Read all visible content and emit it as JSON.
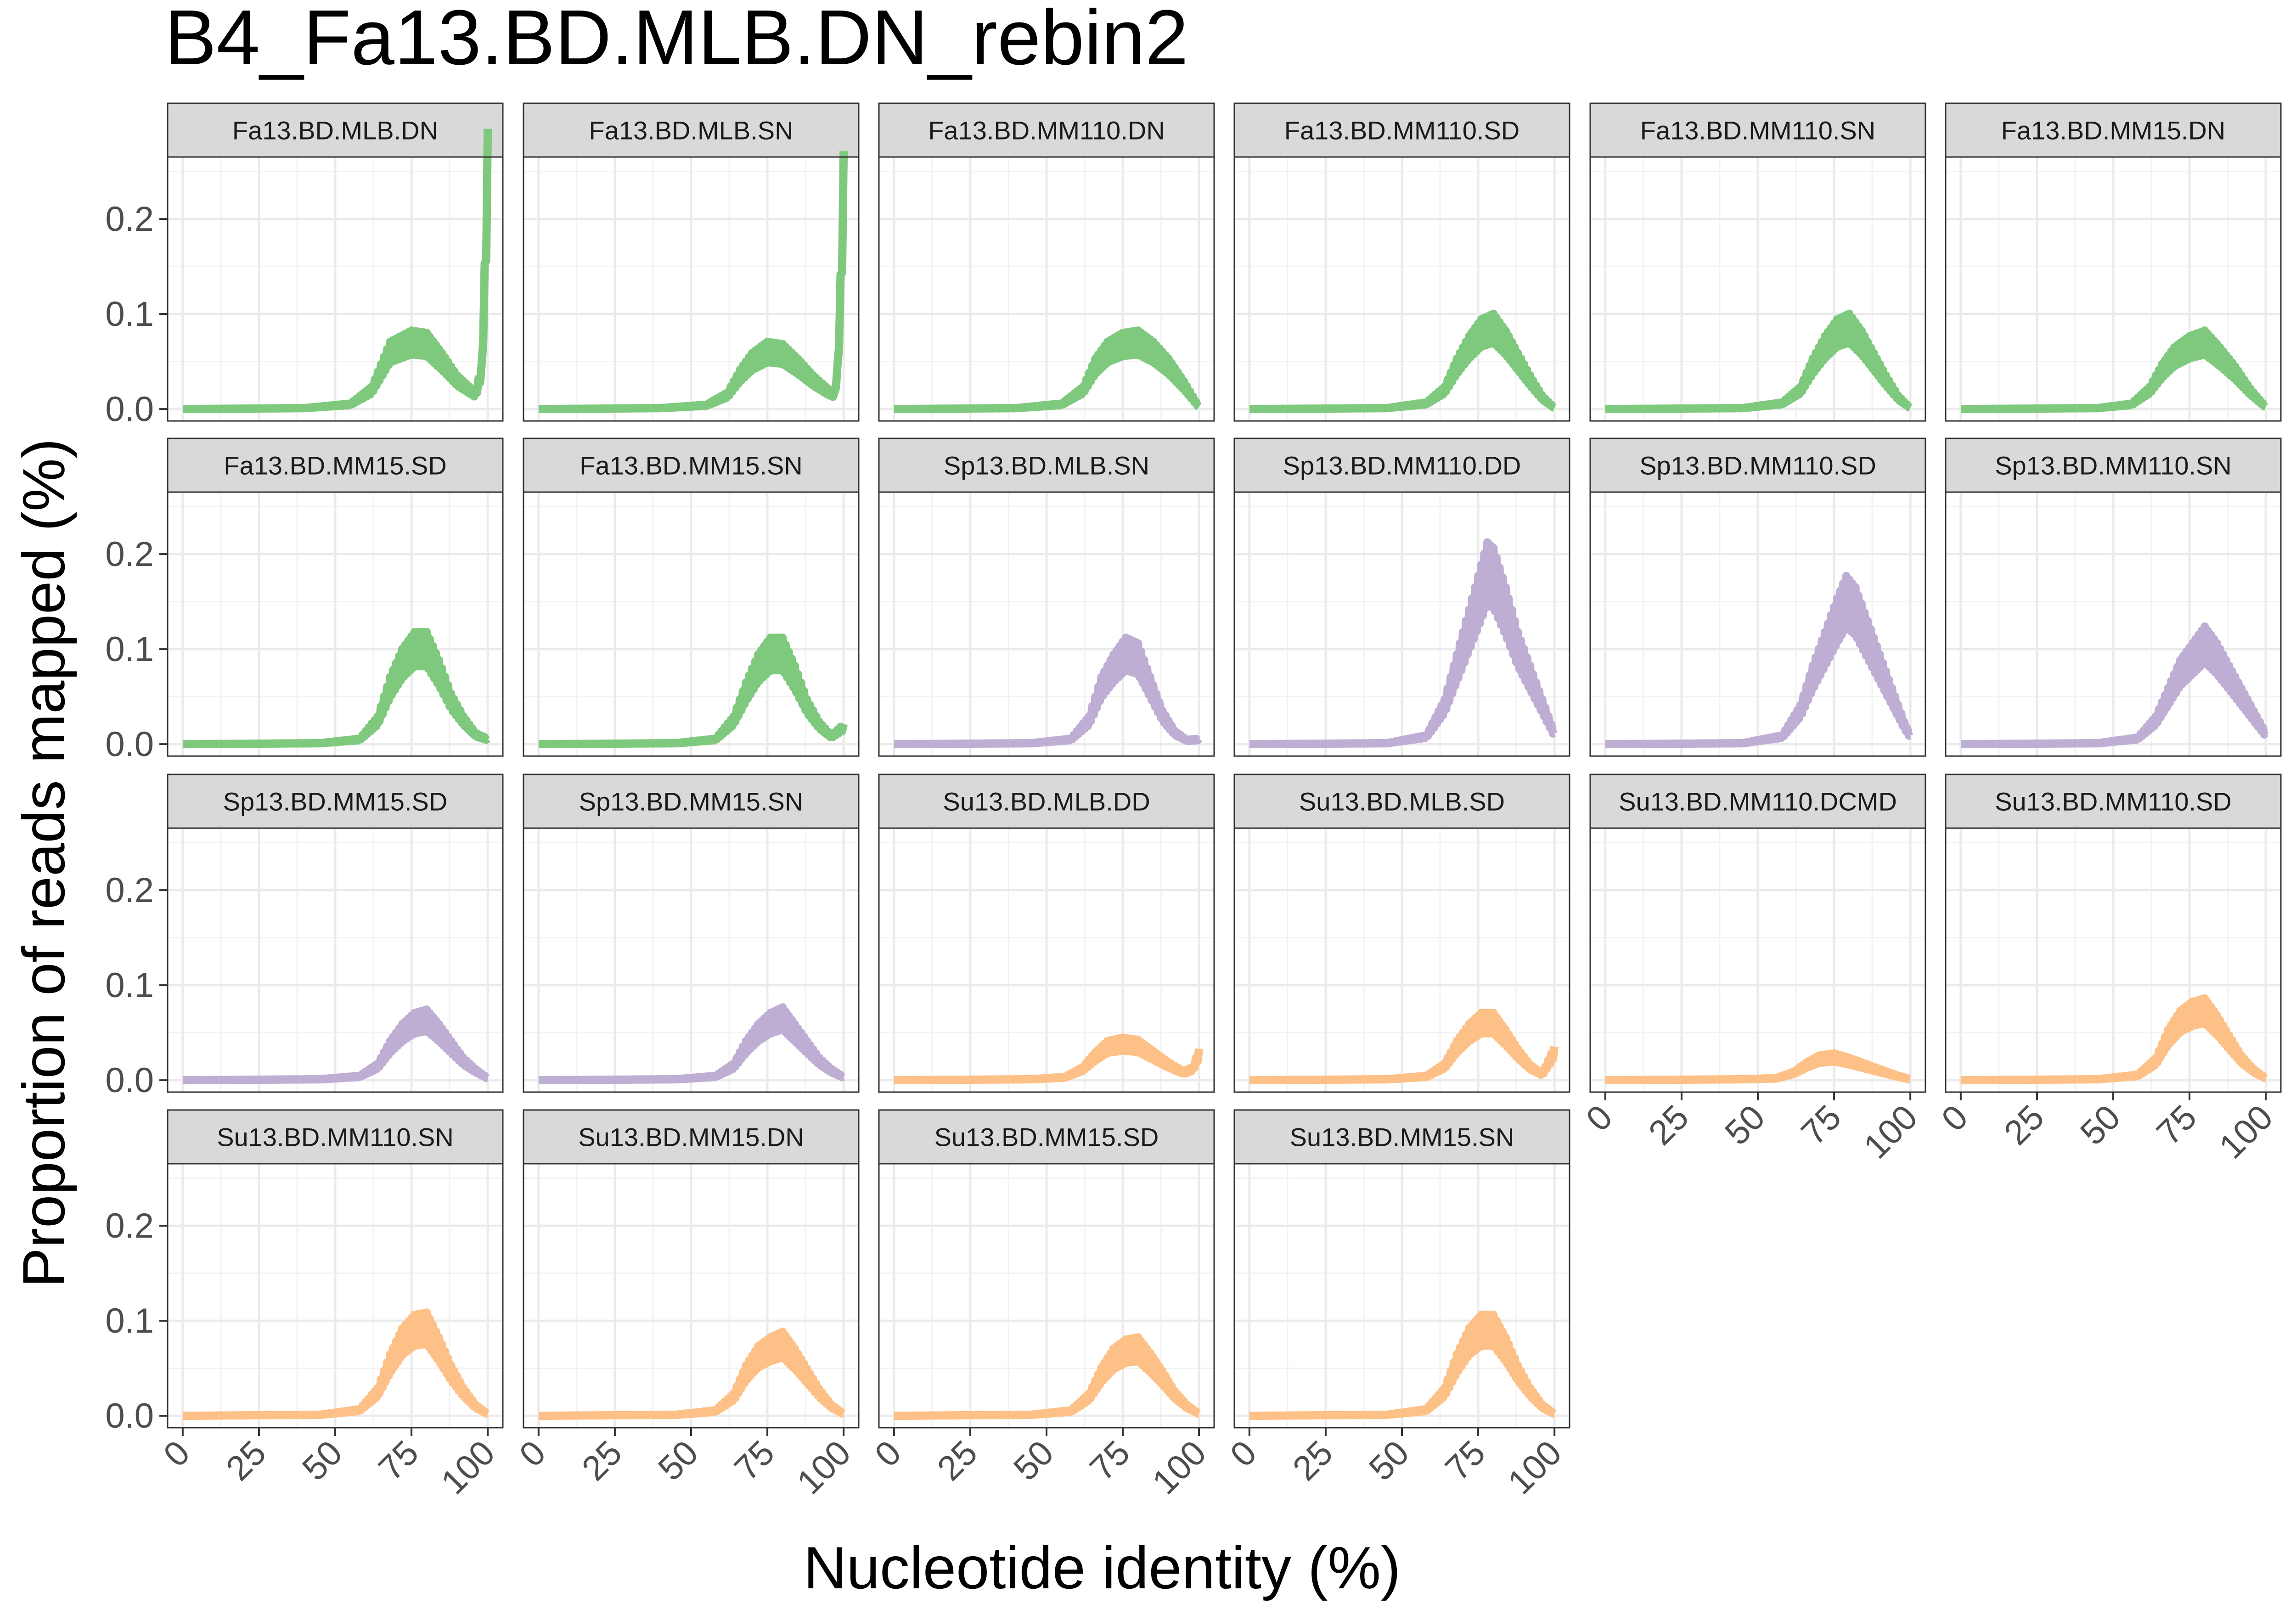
{
  "chart_data": {
    "type": "line",
    "title": "B4_Fa13.BD.MLB.DN_rebin2",
    "xlabel": "Nucleotide identity (%)",
    "ylabel": "Proportion of reads mapped (%)",
    "xlim": [
      0,
      100
    ],
    "ylim": [
      0,
      0.25
    ],
    "x_ticks": [
      0,
      25,
      50,
      75,
      100
    ],
    "y_ticks": [
      0.0,
      0.1,
      0.2
    ],
    "grid": true,
    "legend": "none",
    "group_colors": {
      "Fa": "#7fc97f",
      "Sp": "#beaed4",
      "Su": "#fdc086"
    },
    "panels": [
      {
        "name": "Fa13.BD.MLB.DN",
        "group": "Fa",
        "points": [
          [
            0,
            0
          ],
          [
            40,
            0.001
          ],
          [
            55,
            0.005
          ],
          [
            62,
            0.02
          ],
          [
            65,
            0.04
          ],
          [
            68,
            0.06
          ],
          [
            75,
            0.07
          ],
          [
            80,
            0.068
          ],
          [
            85,
            0.05
          ],
          [
            90,
            0.03
          ],
          [
            94,
            0.02
          ],
          [
            96,
            0.015
          ],
          [
            98,
            0.04
          ],
          [
            99,
            0.13
          ],
          [
            100,
            0.25
          ]
        ]
      },
      {
        "name": "Fa13.BD.MLB.SN",
        "group": "Fa",
        "points": [
          [
            0,
            0
          ],
          [
            40,
            0.001
          ],
          [
            55,
            0.004
          ],
          [
            62,
            0.015
          ],
          [
            66,
            0.035
          ],
          [
            70,
            0.05
          ],
          [
            75,
            0.06
          ],
          [
            80,
            0.058
          ],
          [
            85,
            0.045
          ],
          [
            90,
            0.03
          ],
          [
            95,
            0.018
          ],
          [
            97,
            0.015
          ],
          [
            98,
            0.04
          ],
          [
            99,
            0.12
          ],
          [
            100,
            0.23
          ]
        ]
      },
      {
        "name": "Fa13.BD.MM110.DN",
        "group": "Fa",
        "points": [
          [
            0,
            0
          ],
          [
            40,
            0.001
          ],
          [
            55,
            0.005
          ],
          [
            62,
            0.02
          ],
          [
            66,
            0.045
          ],
          [
            70,
            0.06
          ],
          [
            75,
            0.068
          ],
          [
            80,
            0.07
          ],
          [
            85,
            0.06
          ],
          [
            90,
            0.045
          ],
          [
            95,
            0.025
          ],
          [
            100,
            0.002
          ]
        ]
      },
      {
        "name": "Fa13.BD.MM110.SD",
        "group": "Fa",
        "points": [
          [
            0,
            0
          ],
          [
            45,
            0.001
          ],
          [
            58,
            0.006
          ],
          [
            64,
            0.02
          ],
          [
            68,
            0.045
          ],
          [
            72,
            0.065
          ],
          [
            76,
            0.08
          ],
          [
            80,
            0.085
          ],
          [
            84,
            0.07
          ],
          [
            88,
            0.05
          ],
          [
            92,
            0.03
          ],
          [
            96,
            0.012
          ],
          [
            100,
            0.001
          ]
        ]
      },
      {
        "name": "Fa13.BD.MM110.SN",
        "group": "Fa",
        "points": [
          [
            0,
            0
          ],
          [
            45,
            0.001
          ],
          [
            58,
            0.006
          ],
          [
            64,
            0.02
          ],
          [
            68,
            0.045
          ],
          [
            72,
            0.065
          ],
          [
            76,
            0.08
          ],
          [
            80,
            0.085
          ],
          [
            84,
            0.07
          ],
          [
            88,
            0.05
          ],
          [
            92,
            0.03
          ],
          [
            96,
            0.012
          ],
          [
            100,
            0.001
          ]
        ]
      },
      {
        "name": "Fa13.BD.MM15.DN",
        "group": "Fa",
        "points": [
          [
            0,
            0
          ],
          [
            45,
            0.001
          ],
          [
            56,
            0.005
          ],
          [
            62,
            0.02
          ],
          [
            66,
            0.04
          ],
          [
            70,
            0.055
          ],
          [
            75,
            0.065
          ],
          [
            80,
            0.07
          ],
          [
            85,
            0.055
          ],
          [
            90,
            0.038
          ],
          [
            95,
            0.018
          ],
          [
            100,
            0.002
          ]
        ]
      },
      {
        "name": "Fa13.BD.MM15.SD",
        "group": "Fa",
        "points": [
          [
            0,
            0
          ],
          [
            45,
            0.001
          ],
          [
            58,
            0.005
          ],
          [
            64,
            0.025
          ],
          [
            68,
            0.06
          ],
          [
            72,
            0.085
          ],
          [
            76,
            0.1
          ],
          [
            80,
            0.1
          ],
          [
            84,
            0.075
          ],
          [
            88,
            0.045
          ],
          [
            92,
            0.025
          ],
          [
            96,
            0.01
          ],
          [
            100,
            0.005
          ]
        ]
      },
      {
        "name": "Fa13.BD.MM15.SN",
        "group": "Fa",
        "points": [
          [
            0,
            0
          ],
          [
            45,
            0.001
          ],
          [
            58,
            0.005
          ],
          [
            64,
            0.025
          ],
          [
            68,
            0.055
          ],
          [
            72,
            0.08
          ],
          [
            76,
            0.095
          ],
          [
            80,
            0.095
          ],
          [
            84,
            0.07
          ],
          [
            88,
            0.04
          ],
          [
            92,
            0.02
          ],
          [
            96,
            0.008
          ],
          [
            100,
            0.018
          ]
        ]
      },
      {
        "name": "Sp13.BD.MLB.SN",
        "group": "Sp",
        "points": [
          [
            0,
            0
          ],
          [
            45,
            0.001
          ],
          [
            58,
            0.005
          ],
          [
            64,
            0.025
          ],
          [
            68,
            0.06
          ],
          [
            72,
            0.08
          ],
          [
            76,
            0.095
          ],
          [
            80,
            0.09
          ],
          [
            84,
            0.06
          ],
          [
            88,
            0.03
          ],
          [
            92,
            0.012
          ],
          [
            96,
            0.004
          ],
          [
            100,
            0.005
          ]
        ]
      },
      {
        "name": "Sp13.BD.MM110.DD",
        "group": "Sp",
        "points": [
          [
            0,
            0
          ],
          [
            45,
            0.001
          ],
          [
            58,
            0.008
          ],
          [
            64,
            0.04
          ],
          [
            68,
            0.08
          ],
          [
            72,
            0.12
          ],
          [
            76,
            0.16
          ],
          [
            78,
            0.18
          ],
          [
            80,
            0.175
          ],
          [
            84,
            0.14
          ],
          [
            88,
            0.1
          ],
          [
            92,
            0.07
          ],
          [
            96,
            0.04
          ],
          [
            100,
            0.01
          ]
        ]
      },
      {
        "name": "Sp13.BD.MM110.SD",
        "group": "Sp",
        "points": [
          [
            0,
            0
          ],
          [
            45,
            0.001
          ],
          [
            58,
            0.008
          ],
          [
            64,
            0.035
          ],
          [
            68,
            0.07
          ],
          [
            72,
            0.1
          ],
          [
            76,
            0.13
          ],
          [
            79,
            0.15
          ],
          [
            82,
            0.14
          ],
          [
            86,
            0.11
          ],
          [
            90,
            0.08
          ],
          [
            94,
            0.05
          ],
          [
            98,
            0.02
          ],
          [
            100,
            0.008
          ]
        ]
      },
      {
        "name": "Sp13.BD.MM110.SN",
        "group": "Sp",
        "points": [
          [
            0,
            0
          ],
          [
            45,
            0.001
          ],
          [
            58,
            0.006
          ],
          [
            64,
            0.025
          ],
          [
            68,
            0.05
          ],
          [
            72,
            0.075
          ],
          [
            76,
            0.09
          ],
          [
            80,
            0.105
          ],
          [
            84,
            0.09
          ],
          [
            88,
            0.07
          ],
          [
            92,
            0.05
          ],
          [
            96,
            0.03
          ],
          [
            100,
            0.01
          ]
        ]
      },
      {
        "name": "Sp13.BD.MM15.SD",
        "group": "Sp",
        "points": [
          [
            0,
            0
          ],
          [
            45,
            0.001
          ],
          [
            58,
            0.004
          ],
          [
            64,
            0.015
          ],
          [
            68,
            0.035
          ],
          [
            72,
            0.05
          ],
          [
            76,
            0.06
          ],
          [
            80,
            0.063
          ],
          [
            84,
            0.05
          ],
          [
            88,
            0.035
          ],
          [
            92,
            0.02
          ],
          [
            96,
            0.01
          ],
          [
            100,
            0.002
          ]
        ]
      },
      {
        "name": "Sp13.BD.MM15.SN",
        "group": "Sp",
        "points": [
          [
            0,
            0
          ],
          [
            45,
            0.001
          ],
          [
            58,
            0.004
          ],
          [
            64,
            0.015
          ],
          [
            68,
            0.035
          ],
          [
            72,
            0.05
          ],
          [
            76,
            0.06
          ],
          [
            80,
            0.065
          ],
          [
            84,
            0.05
          ],
          [
            88,
            0.035
          ],
          [
            92,
            0.02
          ],
          [
            96,
            0.01
          ],
          [
            100,
            0.003
          ]
        ]
      },
      {
        "name": "Su13.BD.MLB.DD",
        "group": "Su",
        "points": [
          [
            0,
            0
          ],
          [
            45,
            0.001
          ],
          [
            56,
            0.003
          ],
          [
            62,
            0.012
          ],
          [
            66,
            0.025
          ],
          [
            70,
            0.035
          ],
          [
            75,
            0.038
          ],
          [
            80,
            0.036
          ],
          [
            85,
            0.026
          ],
          [
            90,
            0.016
          ],
          [
            95,
            0.008
          ],
          [
            98,
            0.012
          ],
          [
            100,
            0.028
          ]
        ]
      },
      {
        "name": "Su13.BD.MLB.SD",
        "group": "Su",
        "points": [
          [
            0,
            0
          ],
          [
            45,
            0.001
          ],
          [
            58,
            0.004
          ],
          [
            64,
            0.015
          ],
          [
            68,
            0.035
          ],
          [
            72,
            0.05
          ],
          [
            76,
            0.06
          ],
          [
            80,
            0.06
          ],
          [
            84,
            0.045
          ],
          [
            88,
            0.028
          ],
          [
            92,
            0.014
          ],
          [
            96,
            0.006
          ],
          [
            100,
            0.03
          ]
        ]
      },
      {
        "name": "Su13.BD.MM110.DCMD",
        "group": "Su",
        "points": [
          [
            0,
            0
          ],
          [
            45,
            0.001
          ],
          [
            56,
            0.002
          ],
          [
            62,
            0.008
          ],
          [
            66,
            0.016
          ],
          [
            70,
            0.022
          ],
          [
            75,
            0.024
          ],
          [
            80,
            0.02
          ],
          [
            85,
            0.015
          ],
          [
            90,
            0.01
          ],
          [
            95,
            0.005
          ],
          [
            100,
            0.001
          ]
        ]
      },
      {
        "name": "Su13.BD.MM110.SD",
        "group": "Su",
        "points": [
          [
            0,
            0
          ],
          [
            45,
            0.001
          ],
          [
            58,
            0.005
          ],
          [
            64,
            0.02
          ],
          [
            68,
            0.045
          ],
          [
            72,
            0.062
          ],
          [
            76,
            0.07
          ],
          [
            80,
            0.073
          ],
          [
            84,
            0.058
          ],
          [
            88,
            0.04
          ],
          [
            92,
            0.022
          ],
          [
            96,
            0.01
          ],
          [
            100,
            0.002
          ]
        ]
      },
      {
        "name": "Su13.BD.MM110.SN",
        "group": "Su",
        "points": [
          [
            0,
            0
          ],
          [
            45,
            0.001
          ],
          [
            58,
            0.006
          ],
          [
            64,
            0.025
          ],
          [
            68,
            0.055
          ],
          [
            72,
            0.078
          ],
          [
            76,
            0.09
          ],
          [
            80,
            0.092
          ],
          [
            84,
            0.07
          ],
          [
            88,
            0.045
          ],
          [
            92,
            0.025
          ],
          [
            96,
            0.01
          ],
          [
            100,
            0.002
          ]
        ]
      },
      {
        "name": "Su13.BD.MM15.DN",
        "group": "Su",
        "points": [
          [
            0,
            0
          ],
          [
            45,
            0.001
          ],
          [
            58,
            0.005
          ],
          [
            64,
            0.02
          ],
          [
            68,
            0.045
          ],
          [
            72,
            0.062
          ],
          [
            76,
            0.07
          ],
          [
            80,
            0.075
          ],
          [
            84,
            0.06
          ],
          [
            88,
            0.042
          ],
          [
            92,
            0.024
          ],
          [
            96,
            0.01
          ],
          [
            100,
            0.002
          ]
        ]
      },
      {
        "name": "Su13.BD.MM15.SD",
        "group": "Su",
        "points": [
          [
            0,
            0
          ],
          [
            45,
            0.001
          ],
          [
            58,
            0.005
          ],
          [
            64,
            0.02
          ],
          [
            68,
            0.043
          ],
          [
            72,
            0.06
          ],
          [
            76,
            0.068
          ],
          [
            80,
            0.07
          ],
          [
            84,
            0.056
          ],
          [
            88,
            0.04
          ],
          [
            92,
            0.022
          ],
          [
            96,
            0.01
          ],
          [
            100,
            0.002
          ]
        ]
      },
      {
        "name": "Su13.BD.MM15.SN",
        "group": "Su",
        "points": [
          [
            0,
            0
          ],
          [
            45,
            0.001
          ],
          [
            58,
            0.006
          ],
          [
            64,
            0.025
          ],
          [
            68,
            0.055
          ],
          [
            72,
            0.078
          ],
          [
            76,
            0.09
          ],
          [
            80,
            0.09
          ],
          [
            84,
            0.07
          ],
          [
            88,
            0.045
          ],
          [
            92,
            0.025
          ],
          [
            96,
            0.01
          ],
          [
            100,
            0.002
          ]
        ]
      }
    ]
  }
}
